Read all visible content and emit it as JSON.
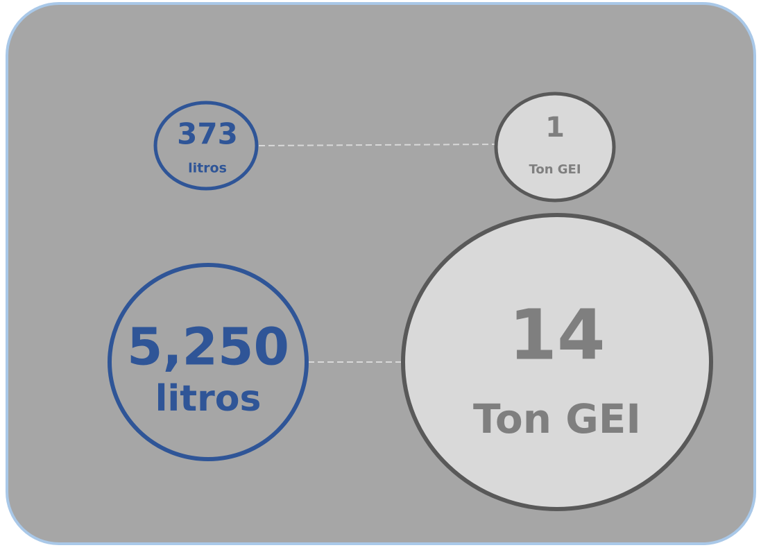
{
  "pairs": [
    {
      "left": {
        "value": "373",
        "unit": "litros"
      },
      "right": {
        "value": "1",
        "unit": "Ton GEI"
      }
    },
    {
      "left": {
        "value": "5,250",
        "unit": "litros"
      },
      "right": {
        "value": "14",
        "unit": "Ton GEI"
      }
    }
  ]
}
